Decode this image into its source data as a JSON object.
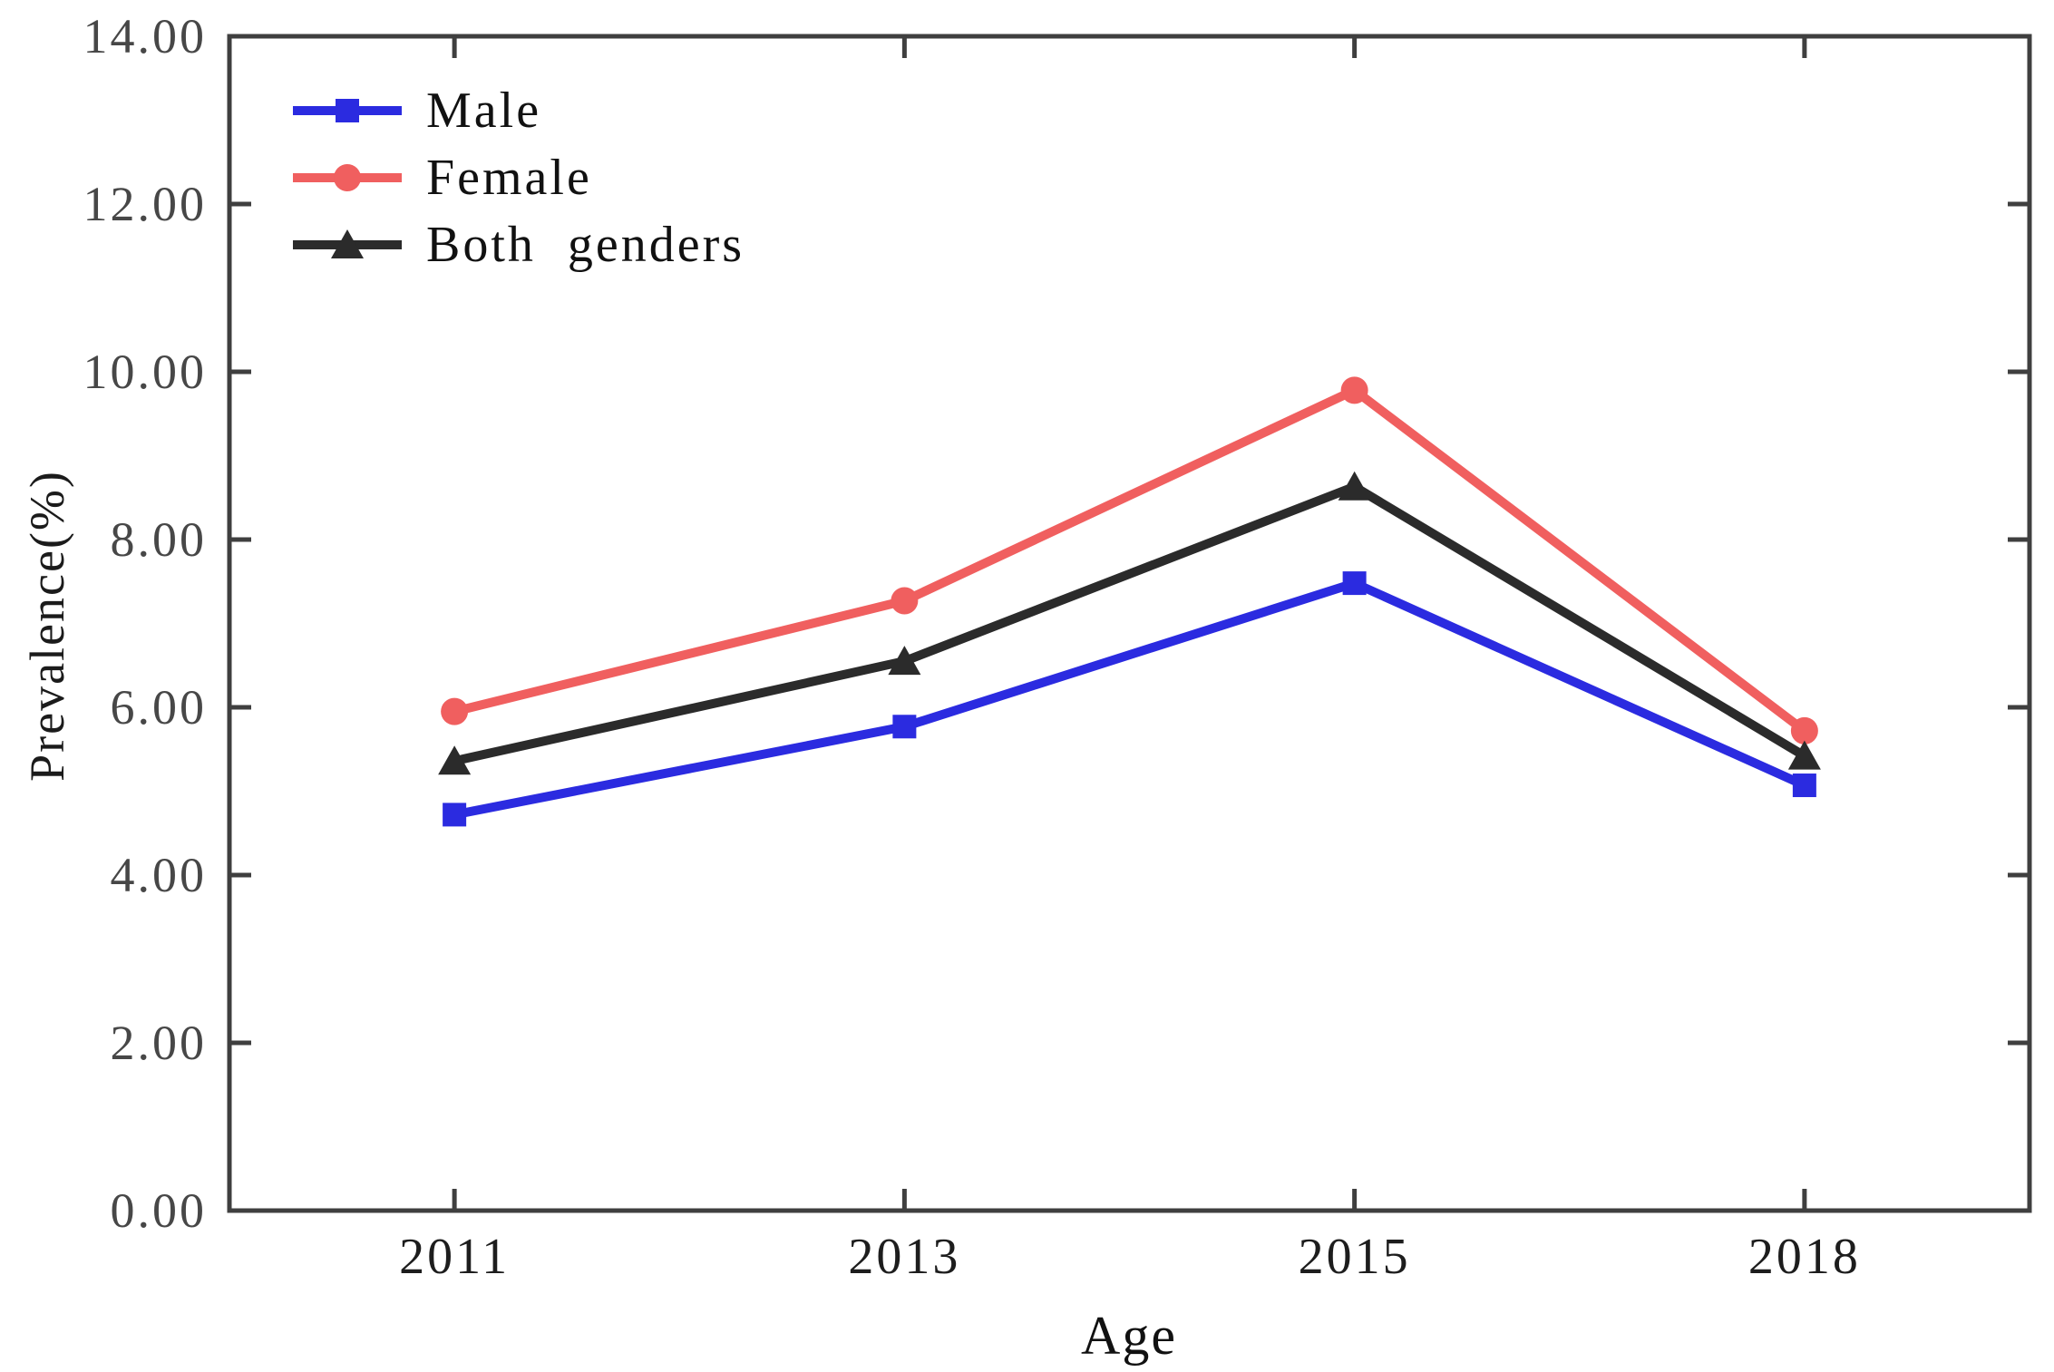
{
  "chart_data": {
    "type": "line",
    "title": "",
    "xlabel": "Age",
    "ylabel": "Prevalence(%)",
    "categories": [
      "2011",
      "2013",
      "2015",
      "2018"
    ],
    "series": [
      {
        "name": "Male",
        "marker": "square",
        "color": "#2b2be0",
        "values": [
          4.72,
          5.77,
          7.48,
          5.07
        ]
      },
      {
        "name": "Female",
        "marker": "circle",
        "color": "#f05f5f",
        "values": [
          5.95,
          7.27,
          9.78,
          5.72
        ]
      },
      {
        "name": "Both genders",
        "marker": "triangle",
        "color": "#2b2b2b",
        "values": [
          5.36,
          6.55,
          8.63,
          5.42
        ]
      }
    ],
    "ylim": [
      0,
      14
    ],
    "y_tick_step": 2,
    "y_tick_labels": [
      "0.00",
      "2.00",
      "4.00",
      "6.00",
      "8.00",
      "10.00",
      "12.00",
      "14.00"
    ],
    "grid": false,
    "legend_position": "top-left",
    "axis_color": "#3f3f3f",
    "box": true,
    "ticks_inward_all_sides": true
  }
}
